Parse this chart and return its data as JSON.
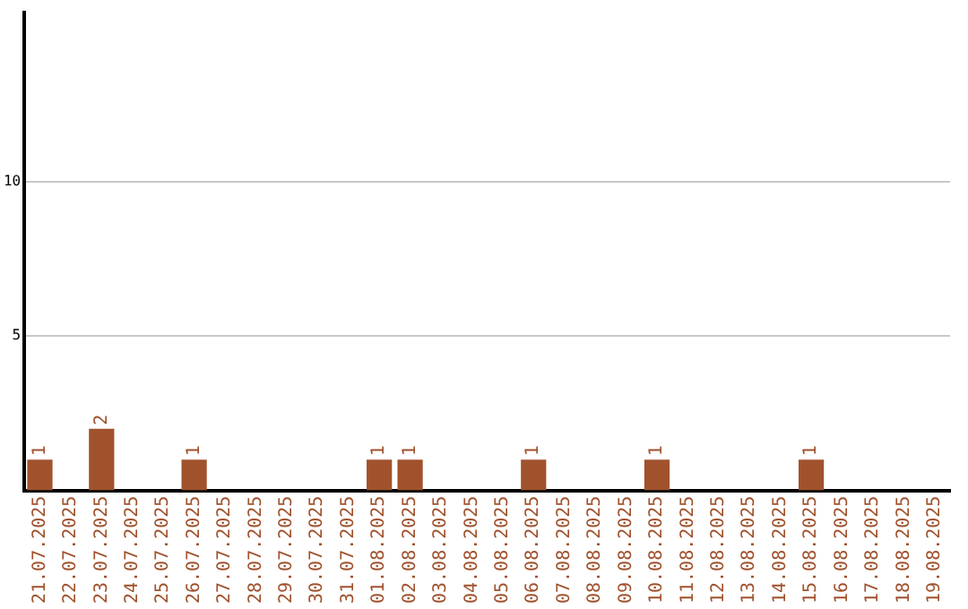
{
  "chart_data": {
    "type": "bar",
    "categories": [
      "21.07.2025",
      "22.07.2025",
      "23.07.2025",
      "24.07.2025",
      "25.07.2025",
      "26.07.2025",
      "27.07.2025",
      "28.07.2025",
      "29.07.2025",
      "30.07.2025",
      "31.07.2025",
      "01.08.2025",
      "02.08.2025",
      "03.08.2025",
      "04.08.2025",
      "05.08.2025",
      "06.08.2025",
      "07.08.2025",
      "08.08.2025",
      "09.08.2025",
      "10.08.2025",
      "11.08.2025",
      "12.08.2025",
      "13.08.2025",
      "14.08.2025",
      "15.08.2025",
      "16.08.2025",
      "17.08.2025",
      "18.08.2025",
      "19.08.2025"
    ],
    "values": [
      1,
      0,
      2,
      0,
      0,
      1,
      0,
      0,
      0,
      0,
      0,
      1,
      1,
      0,
      0,
      0,
      1,
      0,
      0,
      0,
      1,
      0,
      0,
      0,
      0,
      1,
      0,
      0,
      0,
      0
    ],
    "value_labels": [
      "1",
      null,
      "2",
      null,
      null,
      "1",
      null,
      null,
      null,
      null,
      null,
      "1",
      "1",
      null,
      null,
      null,
      "1",
      null,
      null,
      null,
      "1",
      null,
      null,
      null,
      null,
      "1",
      null,
      null,
      null,
      null
    ],
    "color": "#a0522d",
    "ylim": [
      0,
      15.5
    ],
    "yticks": [
      5,
      10
    ],
    "grid": "y",
    "legend": false
  }
}
